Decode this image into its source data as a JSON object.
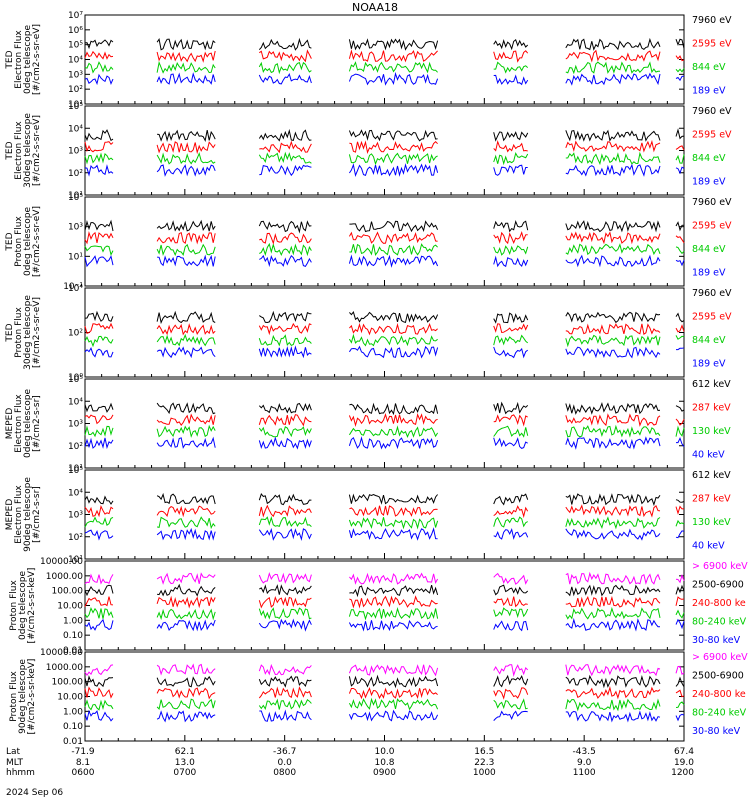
{
  "title": "NOAA18",
  "date_label": "2024 Sep 06",
  "chart_data": [
    {
      "type": "line",
      "ylabel": [
        "TED",
        "Electron Flux",
        "0deg telescope",
        "[#/cm2-s-sr-eV]"
      ],
      "scale": "log",
      "yticks": [
        "10¹",
        "10²",
        "10³",
        "10⁴",
        "10⁵",
        "10⁶",
        "10⁷"
      ],
      "legend": [
        {
          "label": "7960 eV",
          "color": "#000000"
        },
        {
          "label": "2595 eV",
          "color": "#ff0000"
        },
        {
          "label": "844 eV",
          "color": "#00cc00"
        },
        {
          "label": "189 eV",
          "color": "#0000ff"
        }
      ]
    },
    {
      "type": "line",
      "ylabel": [
        "TED",
        "Electron Flux",
        "30deg telescope",
        "[#/cm2-s-sr-eV]"
      ],
      "scale": "log",
      "yticks": [
        "10¹",
        "10²",
        "10³",
        "10⁴",
        "10⁵"
      ],
      "legend": [
        {
          "label": "7960 eV",
          "color": "#000000"
        },
        {
          "label": "2595 eV",
          "color": "#ff0000"
        },
        {
          "label": "844 eV",
          "color": "#00cc00"
        },
        {
          "label": "189 eV",
          "color": "#0000ff"
        }
      ]
    },
    {
      "type": "line",
      "ylabel": [
        "TED",
        "Proton Flux",
        "0deg telescope",
        "[#/cm2-s-sr-eV]"
      ],
      "scale": "log",
      "yticks": [
        "10⁻¹",
        "10¹",
        "10³",
        "10⁵"
      ],
      "legend": [
        {
          "label": "7960 eV",
          "color": "#000000"
        },
        {
          "label": "2595 eV",
          "color": "#ff0000"
        },
        {
          "label": "844 eV",
          "color": "#00cc00"
        },
        {
          "label": "189 eV",
          "color": "#0000ff"
        }
      ]
    },
    {
      "type": "line",
      "ylabel": [
        "TED",
        "Proton Flux",
        "30deg telescope",
        "[#/cm2-s-sr-eV]"
      ],
      "scale": "log",
      "yticks": [
        "10⁰",
        "10²",
        "10⁴"
      ],
      "legend": [
        {
          "label": "7960 eV",
          "color": "#000000"
        },
        {
          "label": "2595 eV",
          "color": "#ff0000"
        },
        {
          "label": "844 eV",
          "color": "#00cc00"
        },
        {
          "label": "189 eV",
          "color": "#0000ff"
        }
      ]
    },
    {
      "type": "line",
      "ylabel": [
        "MEPED",
        "Electron Flux",
        "0deg telescope",
        "[#/cm2-s-sr]"
      ],
      "scale": "log",
      "yticks": [
        "10¹",
        "10²",
        "10³",
        "10⁴",
        "10⁵"
      ],
      "legend": [
        {
          "label": "612 keV",
          "color": "#000000"
        },
        {
          "label": "287 keV",
          "color": "#ff0000"
        },
        {
          "label": "130 keV",
          "color": "#00cc00"
        },
        {
          "label": "40 keV",
          "color": "#0000ff"
        }
      ]
    },
    {
      "type": "line",
      "ylabel": [
        "MEPED",
        "Electron Flux",
        "90deg telescope",
        "[#/cm2-s-sr]"
      ],
      "scale": "log",
      "yticks": [
        "10¹",
        "10²",
        "10³",
        "10⁴",
        "10⁵"
      ],
      "legend": [
        {
          "label": "612 keV",
          "color": "#000000"
        },
        {
          "label": "287 keV",
          "color": "#ff0000"
        },
        {
          "label": "130 keV",
          "color": "#00cc00"
        },
        {
          "label": "40 keV",
          "color": "#0000ff"
        }
      ]
    },
    {
      "type": "line",
      "ylabel": [
        "Proton Flux",
        "0deg telescope",
        "[#/cm2-s-sr-keV]"
      ],
      "scale": "log",
      "yticks": [
        "0.01",
        "0.10",
        "1.00",
        "10.00",
        "100.00",
        "1000.00",
        "10000.00"
      ],
      "legend": [
        {
          "label": "> 6900 keV",
          "color": "#ff00ff"
        },
        {
          "label": "2500-6900",
          "color": "#000000"
        },
        {
          "label": "240-800 ke",
          "color": "#ff0000"
        },
        {
          "label": "80-240 keV",
          "color": "#00cc00"
        },
        {
          "label": "30-80 keV",
          "color": "#0000ff"
        }
      ]
    },
    {
      "type": "line",
      "ylabel": [
        "Proton Flux",
        "90deg telescope",
        "[#/cm2-s-sr-keV]"
      ],
      "scale": "log",
      "yticks": [
        "0.01",
        "0.10",
        "1.00",
        "10.00",
        "100.00",
        "1000.00",
        "10000.00"
      ],
      "legend": [
        {
          "label": "> 6900 keV",
          "color": "#ff00ff"
        },
        {
          "label": "2500-6900",
          "color": "#000000"
        },
        {
          "label": "240-800 ke",
          "color": "#ff0000"
        },
        {
          "label": "80-240 keV",
          "color": "#00cc00"
        },
        {
          "label": "30-80 keV",
          "color": "#0000ff"
        }
      ]
    }
  ],
  "xaxis": {
    "row_labels": [
      "Lat",
      "MLT",
      "hhmm"
    ],
    "ticks": [
      {
        "lat": "-71.9",
        "mlt": "8.1",
        "hhmm": "0600"
      },
      {
        "lat": "62.1",
        "mlt": "13.0",
        "hhmm": "0700"
      },
      {
        "lat": "-36.7",
        "mlt": "0.0",
        "hhmm": "0800"
      },
      {
        "lat": "10.0",
        "mlt": "10.8",
        "hhmm": "0900"
      },
      {
        "lat": "16.5",
        "mlt": "22.3",
        "hhmm": "1000"
      },
      {
        "lat": "-43.5",
        "mlt": "9.0",
        "hhmm": "1100"
      },
      {
        "lat": "67.4",
        "mlt": "19.0",
        "hhmm": "1200"
      }
    ]
  }
}
